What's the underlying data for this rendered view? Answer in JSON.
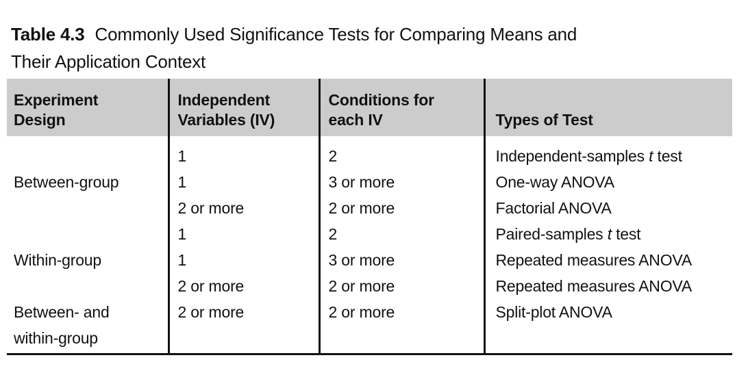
{
  "caption": {
    "label": "Table 4.3",
    "text": "Commonly Used Significance Tests for Comparing Means and\nTheir Application Context"
  },
  "table": {
    "headers": {
      "design": "Experiment\nDesign",
      "iv": "Independent\nVariables (IV)",
      "conditions": "Conditions for\neach IV",
      "test": "Types of Test"
    },
    "rows": [
      {
        "design": "",
        "iv": "1",
        "cond": "2",
        "test": {
          "pre": "Independent-samples ",
          "it": "t",
          "post": " test"
        }
      },
      {
        "design": "Between-group",
        "iv": "1",
        "cond": "3 or more",
        "test": {
          "pre": "One-way ANOVA",
          "it": "",
          "post": ""
        }
      },
      {
        "design": "",
        "iv": "2 or more",
        "cond": "2 or more",
        "test": {
          "pre": "Factorial ANOVA",
          "it": "",
          "post": ""
        }
      },
      {
        "design": "",
        "iv": "1",
        "cond": "2",
        "test": {
          "pre": "Paired-samples ",
          "it": "t",
          "post": " test"
        }
      },
      {
        "design": "Within-group",
        "iv": "1",
        "cond": "3 or more",
        "test": {
          "pre": "Repeated measures ANOVA",
          "it": "",
          "post": ""
        }
      },
      {
        "design": "",
        "iv": "2 or more",
        "cond": "2 or more",
        "test": {
          "pre": "Repeated measures ANOVA",
          "it": "",
          "post": ""
        }
      },
      {
        "design": "Between- and\nwithin-group",
        "iv": "2 or more",
        "cond": "2 or more",
        "test": {
          "pre": "Split-plot ANOVA",
          "it": "",
          "post": ""
        }
      }
    ],
    "colors": {
      "header_bg": "#cccccc",
      "text": "#111111",
      "rule": "#111111"
    }
  }
}
